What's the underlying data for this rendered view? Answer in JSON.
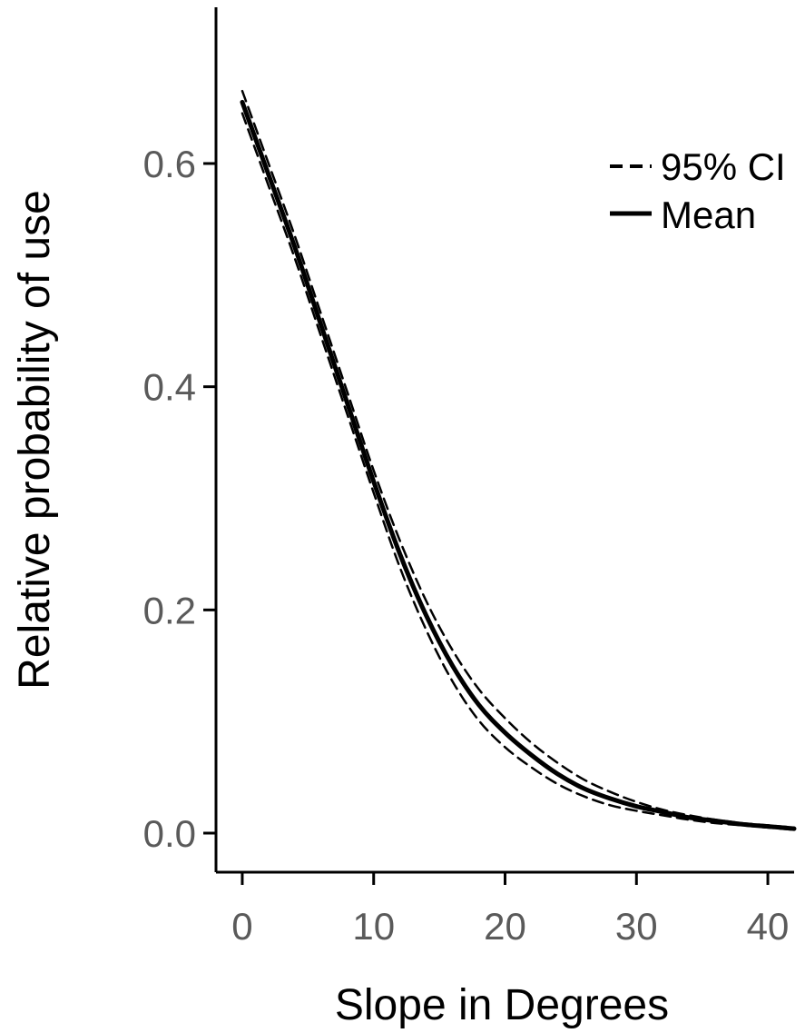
{
  "chart_data": {
    "type": "line",
    "xlabel": "Slope in Degrees",
    "ylabel": "Relative probability of use",
    "xlim": [
      -2,
      42
    ],
    "ylim": [
      -0.035,
      0.74
    ],
    "x_ticks": [
      0,
      10,
      20,
      30,
      40
    ],
    "x_tick_labels": [
      "0",
      "10",
      "20",
      "30",
      "40"
    ],
    "y_ticks": [
      0.0,
      0.2,
      0.4,
      0.6
    ],
    "y_tick_labels": [
      "0.0",
      "0.2",
      "0.4",
      "0.6"
    ],
    "grid": false,
    "legend": {
      "placement": "top-right",
      "entries": [
        "95% CI",
        "Mean"
      ]
    },
    "series": [
      {
        "name": "Mean",
        "style": "solid",
        "x": [
          0,
          2,
          4,
          6,
          8,
          10,
          12,
          14,
          16,
          18,
          20,
          22,
          24,
          26,
          28,
          30,
          32,
          34,
          36,
          38,
          40,
          42
        ],
        "y": [
          0.655,
          0.59,
          0.525,
          0.455,
          0.385,
          0.315,
          0.25,
          0.195,
          0.15,
          0.115,
          0.09,
          0.07,
          0.053,
          0.04,
          0.031,
          0.024,
          0.019,
          0.014,
          0.011,
          0.008,
          0.006,
          0.004
        ]
      },
      {
        "name": "95% CI",
        "style": "dashed",
        "x": [
          0,
          2,
          4,
          6,
          8,
          10,
          12,
          14,
          16,
          18,
          20,
          22,
          24,
          26,
          28,
          30,
          32,
          34,
          36,
          38,
          40,
          42
        ],
        "y": [
          0.665,
          0.6,
          0.535,
          0.465,
          0.395,
          0.325,
          0.262,
          0.208,
          0.164,
          0.129,
          0.103,
          0.081,
          0.063,
          0.048,
          0.037,
          0.028,
          0.021,
          0.016,
          0.012,
          0.009,
          0.007,
          0.005
        ]
      },
      {
        "name": "95% CI",
        "style": "dashed",
        "x": [
          0,
          2,
          4,
          6,
          8,
          10,
          12,
          14,
          16,
          18,
          20,
          22,
          24,
          26,
          28,
          30,
          32,
          34,
          36,
          38,
          40,
          42
        ],
        "y": [
          0.645,
          0.58,
          0.515,
          0.445,
          0.375,
          0.305,
          0.238,
          0.182,
          0.136,
          0.101,
          0.077,
          0.059,
          0.044,
          0.033,
          0.025,
          0.02,
          0.016,
          0.012,
          0.009,
          0.007,
          0.005,
          0.003
        ]
      }
    ]
  }
}
